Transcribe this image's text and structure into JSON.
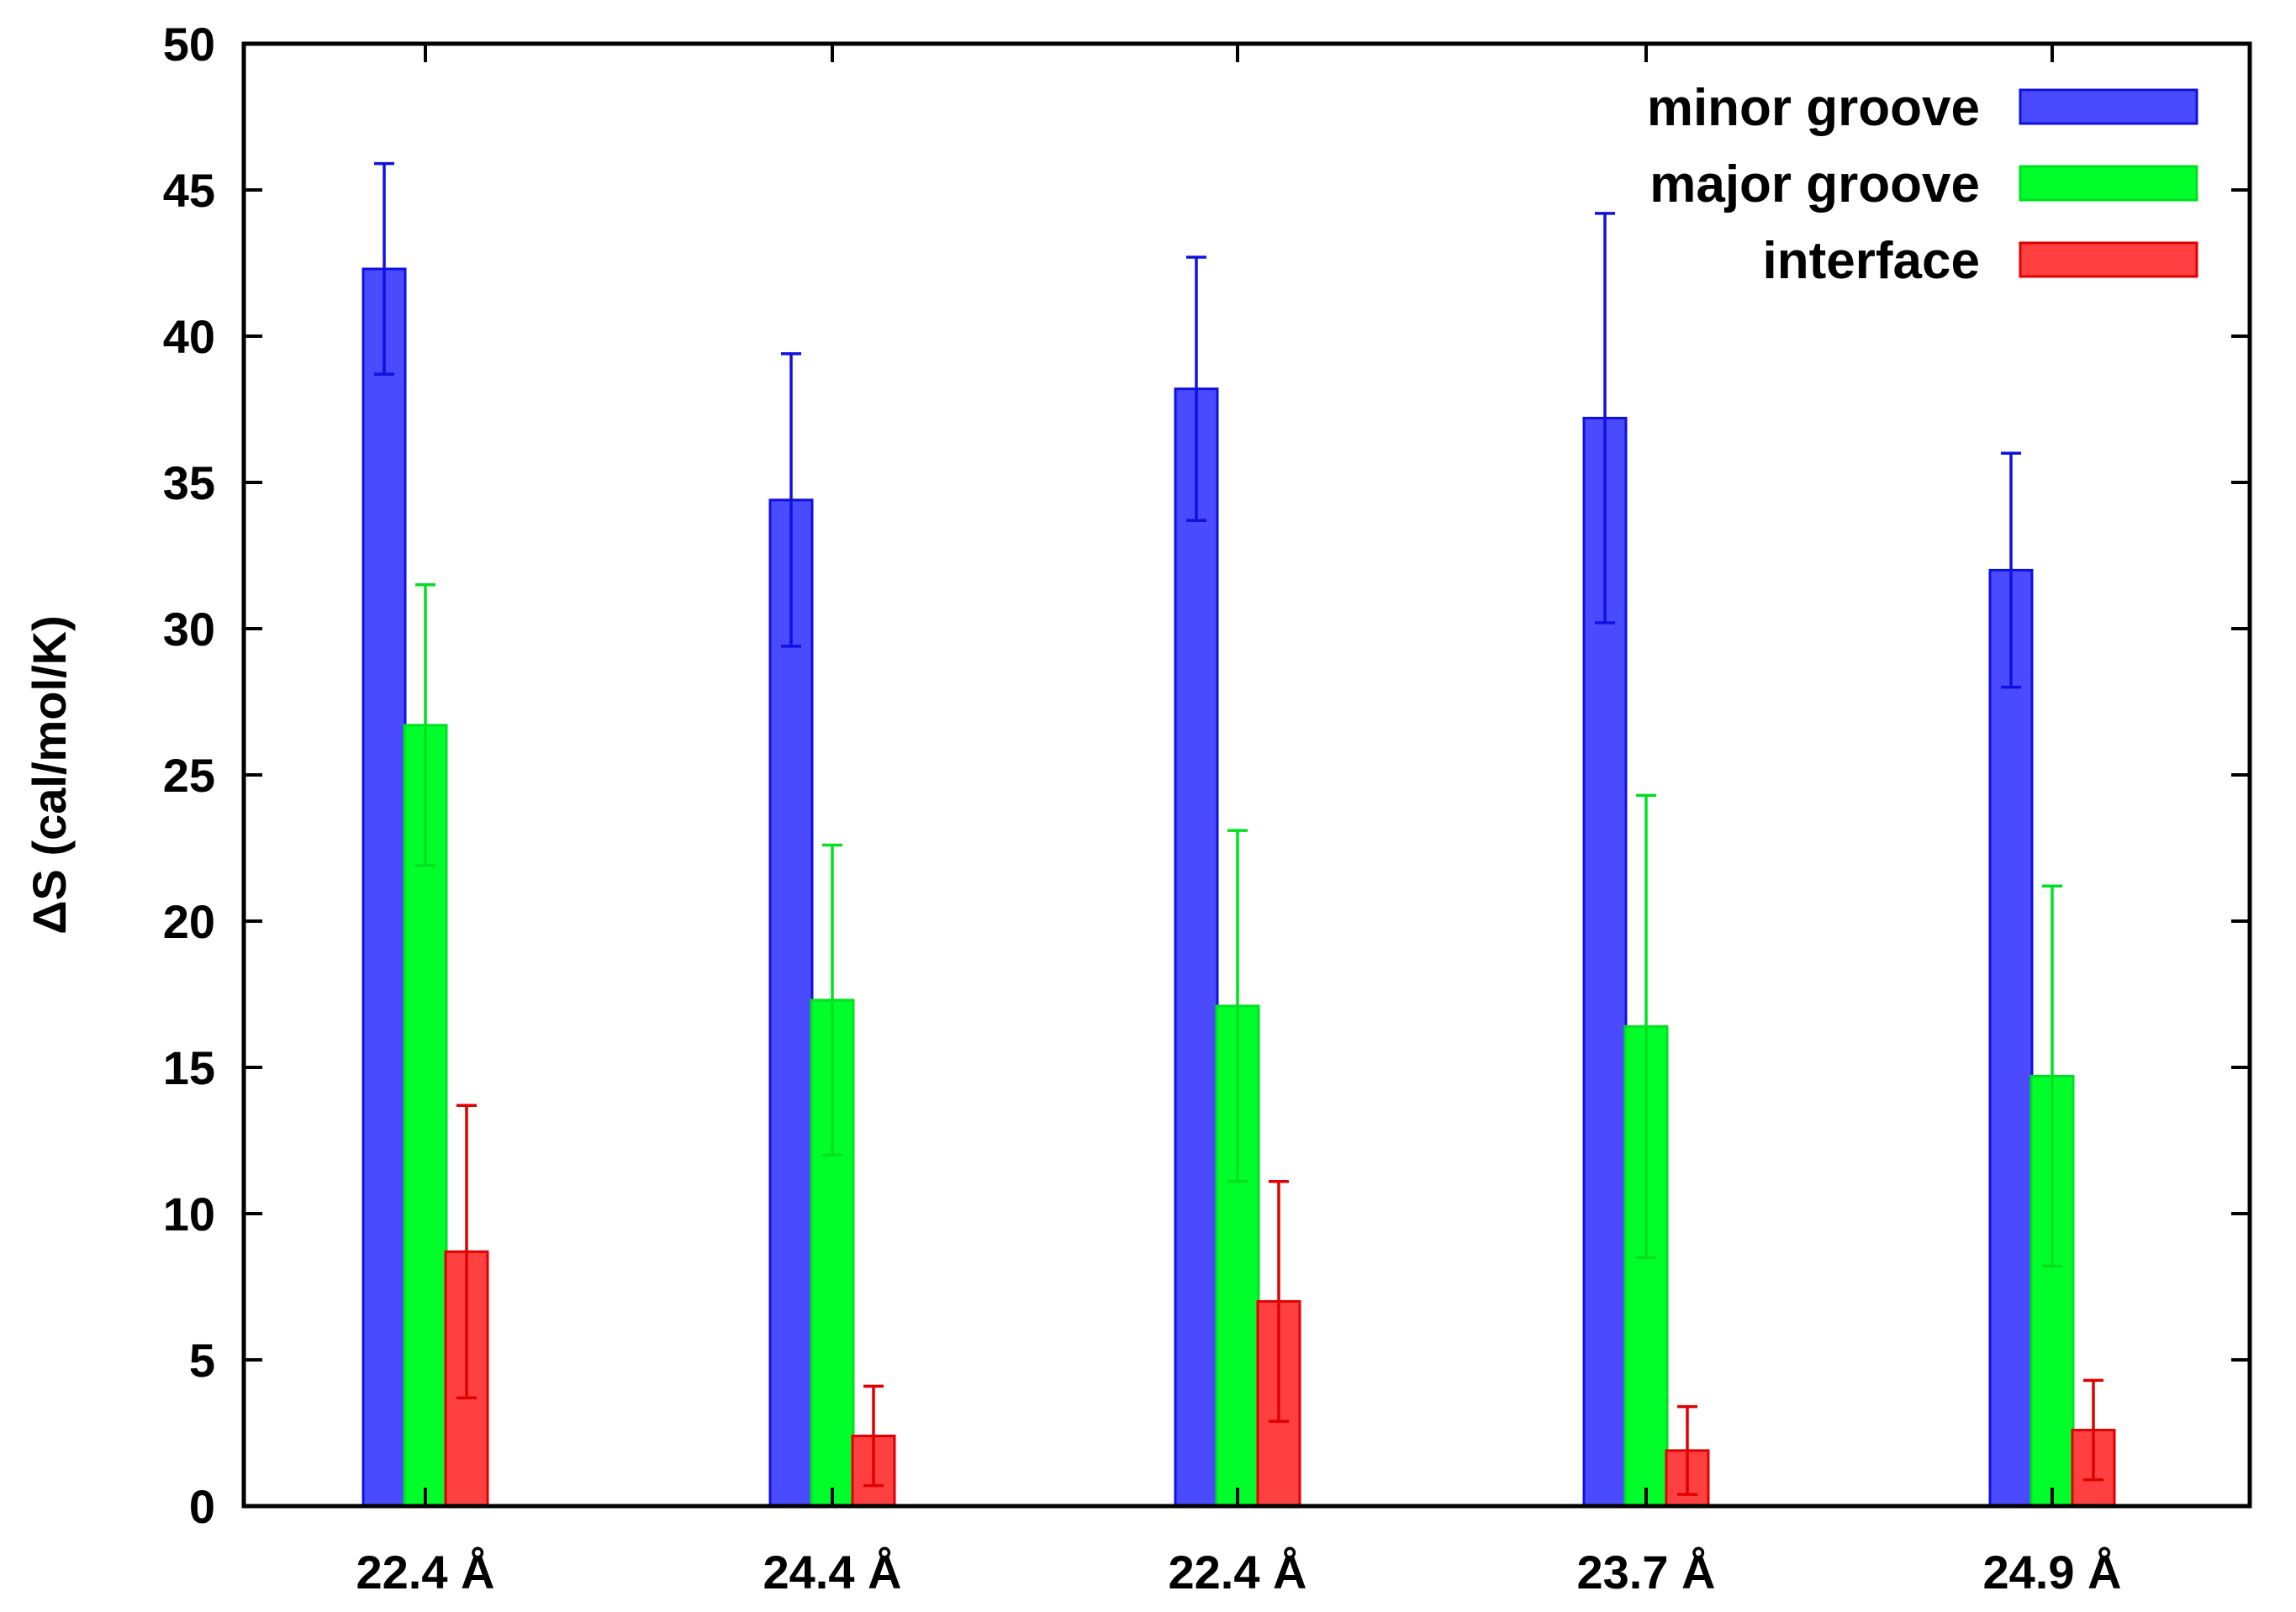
{
  "chart_data": {
    "type": "bar",
    "title": "",
    "xlabel": "",
    "ylabel": "ΔS (cal/mol/K)",
    "ylim": [
      0,
      50
    ],
    "yticks": [
      0,
      5,
      10,
      15,
      20,
      25,
      30,
      35,
      40,
      45,
      50
    ],
    "grid": false,
    "legend_position": "top-right",
    "categories": [
      "22.4 Å",
      "24.4 Å",
      "22.4 Å",
      "23.7 Å",
      "24.9 Å"
    ],
    "series": [
      {
        "name": "minor groove",
        "color": "#4a4aff",
        "edge_color": "#1010e0",
        "values": [
          42.3,
          34.4,
          38.2,
          37.2,
          32.0
        ],
        "errors": [
          3.6,
          5.0,
          4.5,
          7.0,
          4.0
        ]
      },
      {
        "name": "major groove",
        "color": "#00ff2a",
        "edge_color": "#00e020",
        "values": [
          26.7,
          17.3,
          17.1,
          16.4,
          14.7
        ],
        "errors": [
          4.8,
          5.3,
          6.0,
          7.9,
          6.5
        ]
      },
      {
        "name": "interface",
        "color": "#ff4040",
        "edge_color": "#e00000",
        "values": [
          8.7,
          2.4,
          7.0,
          1.9,
          2.6
        ],
        "errors": [
          5.0,
          1.7,
          4.1,
          1.5,
          1.7
        ]
      }
    ]
  }
}
